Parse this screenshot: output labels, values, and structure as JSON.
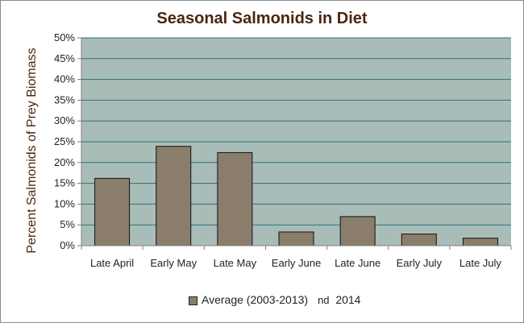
{
  "chart_data": {
    "type": "bar",
    "title": "Seasonal Salmonids in Diet",
    "ylabel": "Percent Salmonids of Prey Biomass",
    "xlabel": "",
    "categories": [
      "Late April",
      "Early May",
      "Late May",
      "Early June",
      "Late June",
      "Early July",
      "Late July"
    ],
    "series": [
      {
        "name": "Average (2003-2013)",
        "values": [
          16.2,
          23.9,
          22.4,
          3.3,
          7.0,
          2.8,
          1.8
        ]
      }
    ],
    "ylim": [
      0,
      50
    ],
    "yticks": [
      0,
      5,
      10,
      15,
      20,
      25,
      30,
      35,
      40,
      45,
      50
    ],
    "ytick_labels": [
      "0%",
      "5%",
      "10%",
      "15%",
      "20%",
      "25%",
      "30%",
      "35%",
      "40%",
      "45%",
      "50%"
    ],
    "grid": true,
    "legend_position": "bottom",
    "legend_extra_text": "nd",
    "legend_extra_label": "2014",
    "colors": {
      "plot_background": "#a9bdb8",
      "bar_fill": "#8b7d6b",
      "bar_stroke": "#111111",
      "gridline": "#2f6f7a",
      "title": "#4a2712"
    }
  }
}
